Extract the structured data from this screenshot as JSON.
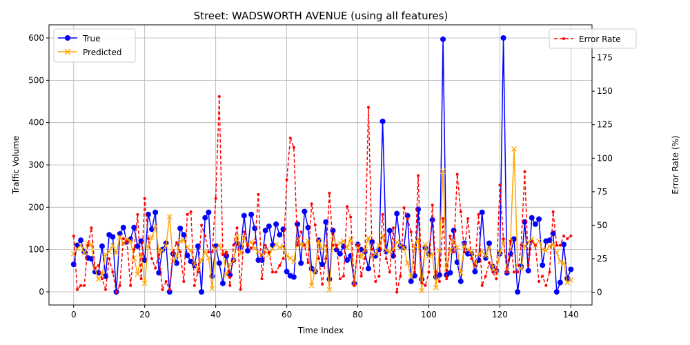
{
  "chart_data": {
    "type": "line",
    "title": "Street: WADSWORTH AVENUE (using all features)",
    "xlabel": "Time Index",
    "ylabel": "Traffic Volume",
    "y2label": "Error Rate (%)",
    "xlim": [
      -6.95,
      145.95
    ],
    "ylim": [
      -31,
      631
    ],
    "y2lim": [
      -9.5,
      199.5
    ],
    "xticks": [
      0,
      20,
      40,
      60,
      80,
      100,
      120,
      140
    ],
    "yticks": [
      0,
      100,
      200,
      300,
      400,
      500,
      600
    ],
    "y2ticks": [
      0,
      25,
      50,
      75,
      100,
      125,
      150,
      175
    ],
    "grid": true,
    "legend_left": "upper-left",
    "legend_right": "upper-right",
    "colors": {
      "true": "#0000ff",
      "predicted": "#ffa500",
      "error": "#ff0000"
    },
    "series": [
      {
        "name": "True",
        "axis": "left",
        "style": "solid-circle",
        "values": [
          65,
          110,
          122,
          95,
          80,
          78,
          48,
          45,
          108,
          37,
          135,
          130,
          0,
          137,
          152,
          118,
          125,
          152,
          108,
          120,
          75,
          183,
          148,
          188,
          45,
          100,
          115,
          0,
          90,
          68,
          150,
          135,
          86,
          72,
          62,
          108,
          0,
          175,
          188,
          37,
          108,
          68,
          20,
          85,
          40,
          75,
          115,
          105,
          180,
          97,
          183,
          150,
          75,
          75,
          145,
          155,
          110,
          160,
          135,
          148,
          48,
          38,
          35,
          160,
          68,
          190,
          152,
          55,
          48,
          122,
          65,
          165,
          30,
          145,
          100,
          90,
          108,
          75,
          85,
          20,
          112,
          100,
          95,
          55,
          118,
          85,
          100,
          403,
          95,
          145,
          85,
          185,
          108,
          105,
          180,
          25,
          38,
          195,
          30,
          105,
          90,
          170,
          35,
          40,
          597,
          40,
          45,
          145,
          70,
          25,
          115,
          90,
          90,
          48,
          75,
          188,
          80,
          115,
          60,
          50,
          90,
          600,
          45,
          90,
          125,
          0,
          60,
          165,
          50,
          175,
          160,
          172,
          63,
          120,
          122,
          138,
          0,
          22,
          112,
          32,
          53
        ]
      },
      {
        "name": "Predicted",
        "axis": "left",
        "style": "solid-x",
        "values": [
          90,
          102,
          110,
          92,
          115,
          112,
          55,
          30,
          40,
          88,
          95,
          110,
          92,
          130,
          115,
          125,
          120,
          80,
          42,
          88,
          20,
          108,
          128,
          155,
          95,
          98,
          108,
          178,
          72,
          85,
          120,
          122,
          105,
          98,
          65,
          55,
          75,
          95,
          80,
          8,
          102,
          110,
          95,
          40,
          65,
          72,
          130,
          90,
          128,
          112,
          118,
          102,
          95,
          88,
          95,
          88,
          102,
          112,
          105,
          108,
          85,
          80,
          72,
          125,
          112,
          110,
          120,
          15,
          50,
          120,
          102,
          110,
          5,
          132,
          108,
          115,
          120,
          105,
          125,
          20,
          110,
          82,
          100,
          128,
          82,
          90,
          110,
          132,
          98,
          95,
          100,
          118,
          110,
          105,
          68,
          35,
          110,
          125,
          3,
          112,
          85,
          90,
          10,
          98,
          285,
          55,
          98,
          120,
          105,
          45,
          110,
          100,
          95,
          60,
          90,
          95,
          85,
          105,
          58,
          45,
          92,
          120,
          50,
          118,
          338,
          62,
          55,
          108,
          118,
          125,
          110,
          120,
          100,
          98,
          108,
          112,
          92,
          72,
          68,
          22,
          28
        ]
      },
      {
        "name": "Error Rate",
        "axis": "right",
        "style": "dashed-dot",
        "values": [
          42,
          2,
          5,
          5,
          35,
          48,
          18,
          20,
          10,
          2,
          25,
          15,
          0,
          5,
          40,
          38,
          5,
          32,
          58,
          10,
          70,
          40,
          25,
          18,
          28,
          2,
          8,
          2,
          30,
          37,
          30,
          8,
          58,
          60,
          5,
          15,
          50,
          42,
          30,
          30,
          70,
          146,
          28,
          30,
          5,
          35,
          48,
          2,
          45,
          35,
          33,
          37,
          73,
          10,
          35,
          30,
          15,
          15,
          20,
          25,
          84,
          115,
          108,
          35,
          45,
          35,
          22,
          66,
          50,
          25,
          6,
          25,
          74,
          35,
          35,
          10,
          12,
          64,
          56,
          5,
          35,
          12,
          25,
          138,
          32,
          8,
          12,
          58,
          25,
          15,
          48,
          0,
          12,
          63,
          55,
          45,
          15,
          87,
          7,
          5,
          15,
          65,
          15,
          8,
          55,
          10,
          42,
          30,
          88,
          60,
          30,
          55,
          25,
          20,
          58,
          5,
          12,
          22,
          15,
          10,
          80,
          40,
          15,
          38,
          15,
          15,
          35,
          90,
          20,
          38,
          35,
          8,
          12,
          5,
          15,
          60,
          35,
          35,
          42,
          40,
          42
        ]
      }
    ]
  }
}
